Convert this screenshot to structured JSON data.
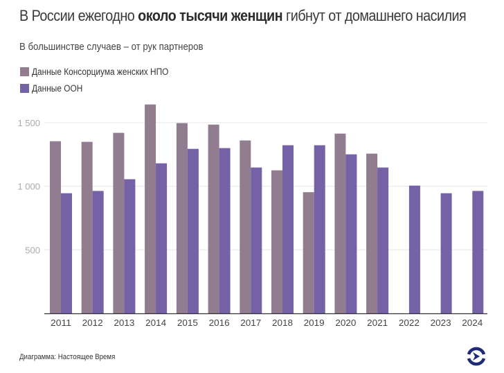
{
  "header": {
    "title_pre": "В России ежегодно ",
    "title_bold": "около тысячи женщин",
    "title_post": " гибнут от домашнего насилия",
    "subtitle": "В большинстве случаев – от рук партнеров"
  },
  "footer": {
    "credit": "Диаграмма: Настоящее Время",
    "logo_icon": "nastoyashcheye-vremya-logo-icon"
  },
  "colors": {
    "ngo": "#927c8f",
    "un": "#7461a6",
    "grid": "#e6e6e6",
    "axis": "#333333",
    "tick_label": "#aaaaaa",
    "logo": "#1f2a78"
  },
  "chart_data": {
    "type": "bar",
    "title": "В России ежегодно около тысячи женщин гибнут от домашнего насилия",
    "subtitle": "В большинстве случаев – от рук партнеров",
    "xlabel": "",
    "ylabel": "",
    "categories": [
      "2011",
      "2012",
      "2013",
      "2014",
      "2015",
      "2016",
      "2017",
      "2018",
      "2019",
      "2020",
      "2021",
      "2022",
      "2023",
      "2024"
    ],
    "series": [
      {
        "name": "Данные Консорциума женских НПО",
        "values": [
          1354,
          1349,
          1420,
          1643,
          1496,
          1485,
          1360,
          1125,
          953,
          1414,
          1256,
          null,
          null,
          null
        ]
      },
      {
        "name": "Данные ООН",
        "values": [
          945,
          963,
          1055,
          1180,
          1294,
          1300,
          1147,
          1322,
          1322,
          1251,
          1147,
          1005,
          945,
          963
        ]
      }
    ],
    "ylim": [
      0,
      1750
    ],
    "yticks": [
      500,
      1000,
      1500
    ],
    "ytick_labels": [
      "500",
      "1 000",
      "1 500"
    ],
    "grid": true,
    "legend": "top-left"
  }
}
